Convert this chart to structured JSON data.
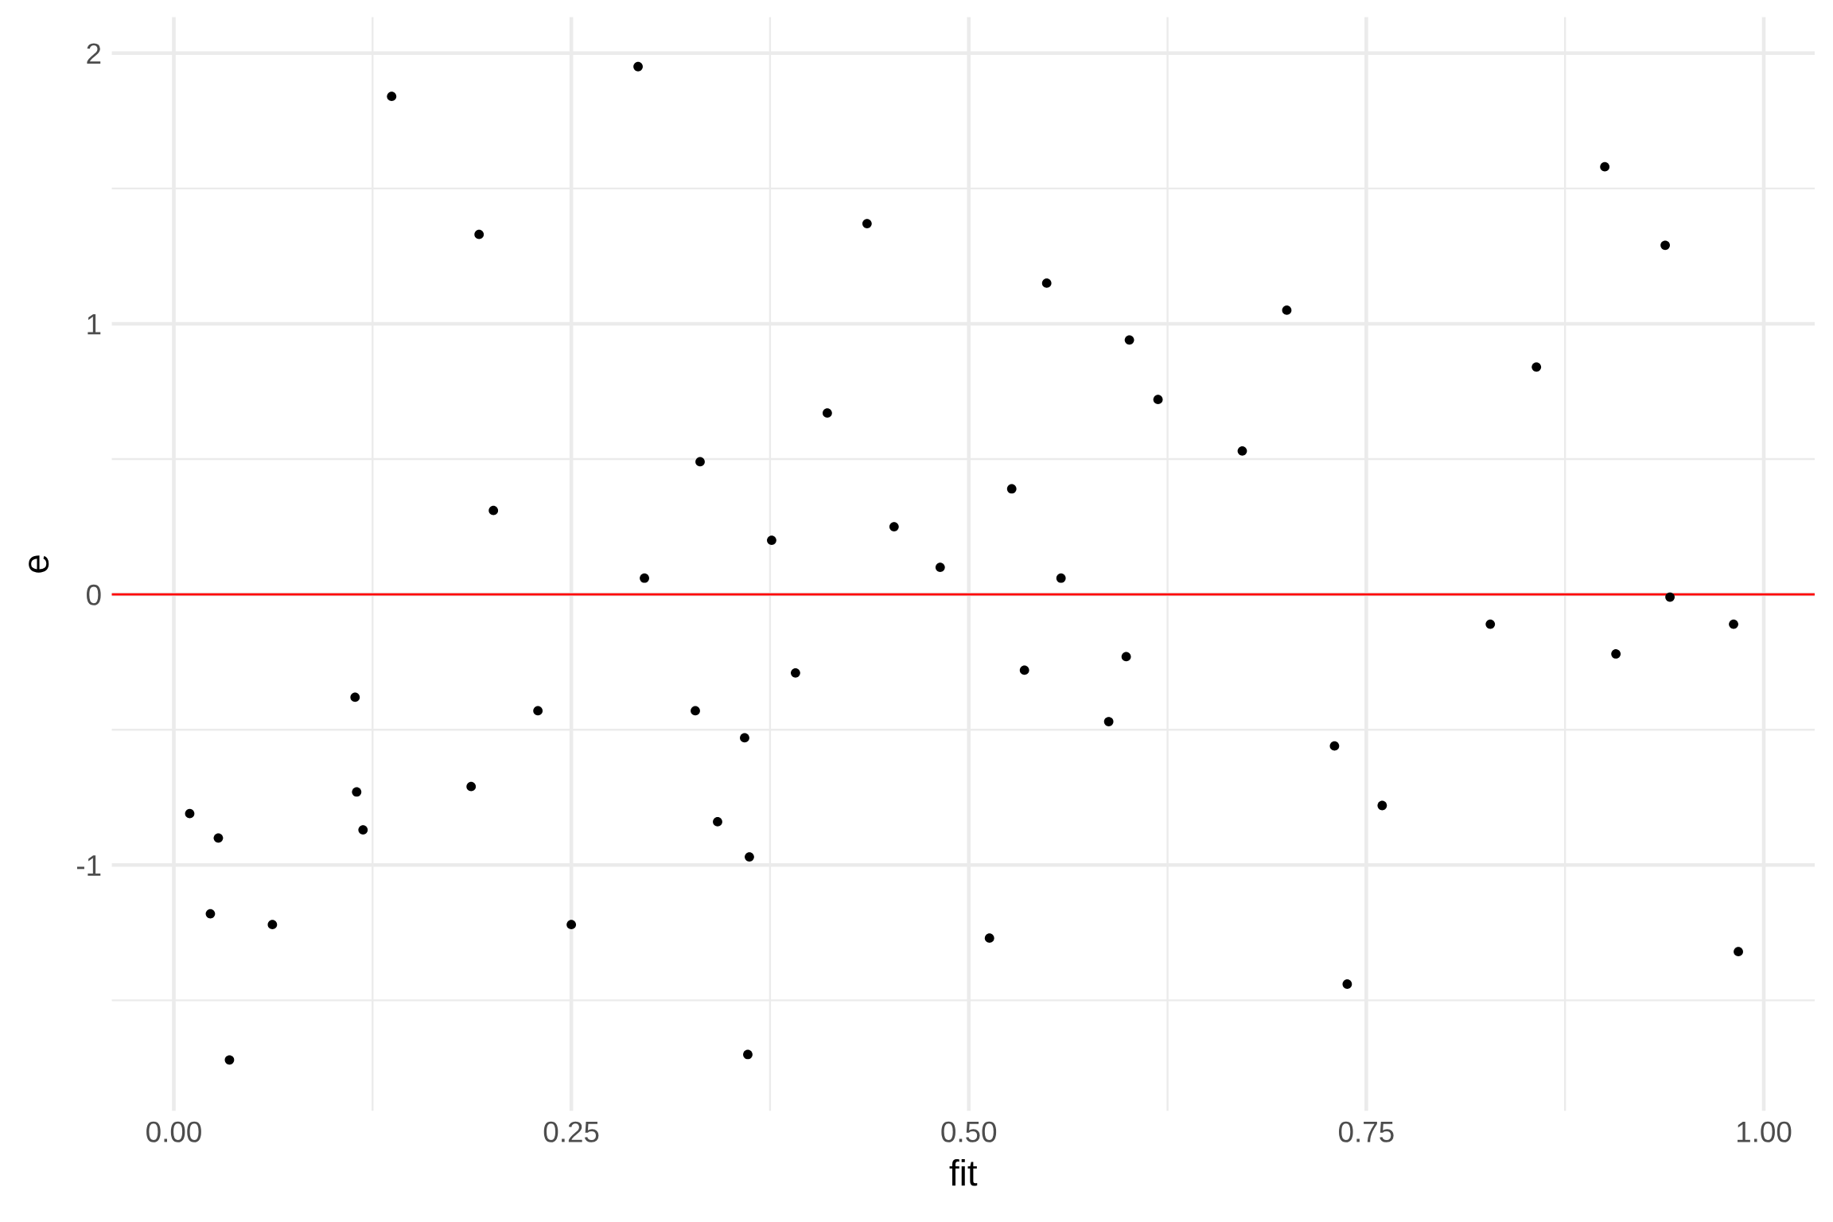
{
  "chart_data": {
    "type": "scatter",
    "xlabel": "fit",
    "ylabel": "e",
    "x": [
      0.01,
      0.023,
      0.028,
      0.035,
      0.062,
      0.114,
      0.115,
      0.119,
      0.137,
      0.187,
      0.192,
      0.201,
      0.229,
      0.25,
      0.292,
      0.296,
      0.328,
      0.331,
      0.342,
      0.359,
      0.361,
      0.362,
      0.376,
      0.391,
      0.411,
      0.436,
      0.453,
      0.482,
      0.513,
      0.527,
      0.535,
      0.549,
      0.558,
      0.588,
      0.599,
      0.601,
      0.619,
      0.672,
      0.7,
      0.73,
      0.738,
      0.76,
      0.828,
      0.857,
      0.9,
      0.907,
      0.938,
      0.941,
      0.981,
      0.984
    ],
    "values": [
      -0.81,
      -1.18,
      -0.9,
      -1.72,
      -1.22,
      -0.38,
      -0.73,
      -0.87,
      1.84,
      -0.71,
      1.33,
      0.31,
      -0.43,
      -1.22,
      1.95,
      0.06,
      -0.43,
      0.49,
      -0.84,
      -0.53,
      -1.7,
      -0.97,
      0.2,
      -0.29,
      0.67,
      1.37,
      0.25,
      0.1,
      -1.27,
      0.39,
      -0.28,
      1.15,
      0.06,
      -0.47,
      -0.23,
      0.94,
      0.72,
      0.53,
      1.05,
      -0.56,
      -1.44,
      -0.78,
      -0.11,
      0.84,
      1.58,
      -0.22,
      1.29,
      -0.01,
      -0.11,
      -1.32
    ],
    "color": "#000000",
    "marker": "circle",
    "xlim": [
      -0.039,
      1.032
    ],
    "ylim": [
      -1.908,
      2.133
    ],
    "xticks": [
      {
        "value": 0,
        "label": "0.00"
      },
      {
        "value": 0.125,
        "label": null
      },
      {
        "value": 0.25,
        "label": "0.25"
      },
      {
        "value": 0.375,
        "label": null
      },
      {
        "value": 0.5,
        "label": "0.50"
      },
      {
        "value": 0.625,
        "label": null
      },
      {
        "value": 0.75,
        "label": "0.75"
      },
      {
        "value": 0.875,
        "label": null
      },
      {
        "value": 1,
        "label": "1.00"
      }
    ],
    "yticks": [
      {
        "value": -1.5,
        "label": null
      },
      -1,
      {
        "value": -0.5,
        "label": null
      },
      0,
      {
        "value": 0.5,
        "label": null
      },
      1,
      {
        "value": 1.5,
        "label": null
      },
      2
    ],
    "grid": true,
    "ref_lines": [
      {
        "axis": "y",
        "value": 0,
        "color": "#ff0000"
      }
    ]
  }
}
